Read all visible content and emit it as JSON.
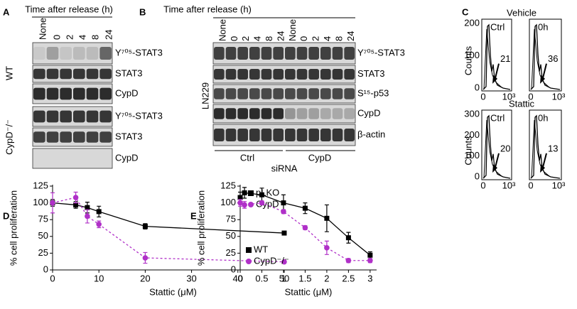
{
  "panels": {
    "A": {
      "label": "A",
      "time_axis": "Time after release (h)",
      "lanes": [
        "None",
        "0",
        "2",
        "4",
        "8",
        "24"
      ],
      "groups": [
        {
          "name": "WT",
          "rows": [
            "Y⁷⁰⁵-STAT3",
            "STAT3",
            "CypD"
          ]
        },
        {
          "name": "CypD⁻/⁻",
          "rows": [
            "Y⁷⁰⁵-STAT3",
            "STAT3",
            "CypD"
          ]
        }
      ]
    },
    "B": {
      "label": "B",
      "time_axis": "Time after release (h)",
      "lanes": [
        "None",
        "0",
        "2",
        "4",
        "8",
        "24",
        "None",
        "0",
        "2",
        "4",
        "8",
        "24"
      ],
      "cell_line": "LN229",
      "rows": [
        "Y⁷⁰⁵-STAT3",
        "STAT3",
        "S¹⁵-p53",
        "CypD",
        "β-actin"
      ],
      "sirna_groups": [
        "Ctrl",
        "CypD"
      ],
      "sirna_label": "siRNA"
    },
    "C": {
      "label": "C",
      "ylabel": "Counts",
      "xticks": [
        0,
        "10³"
      ],
      "treatments": [
        {
          "name": "Vehicle",
          "yticks": [
            200,
            100,
            0
          ],
          "plots": [
            {
              "label": "Ctrl",
              "value": 21
            },
            {
              "label": "0h",
              "value": 36
            }
          ]
        },
        {
          "name": "Stattic",
          "yticks": [
            300,
            200,
            100,
            0
          ],
          "plots": [
            {
              "label": "Ctrl",
              "value": 20
            },
            {
              "label": "0h",
              "value": 13
            }
          ]
        }
      ]
    }
  },
  "chart_data": [
    {
      "type": "line",
      "label": "D",
      "xlabel": "Stattic (μM)",
      "ylabel": "% cell proliferation",
      "xlim": [
        0,
        52
      ],
      "ylim": [
        0,
        125
      ],
      "xticks": [
        0,
        10,
        20,
        30,
        40,
        50
      ],
      "yticks": [
        0,
        25,
        50,
        75,
        100,
        125
      ],
      "legend": "upper right",
      "x": [
        0,
        5,
        7.5,
        10,
        20,
        50
      ],
      "series": [
        {
          "name": "pLKO",
          "color": "#000000",
          "marker": "square",
          "dashed": false,
          "values": [
            100,
            97,
            93,
            87,
            65,
            55
          ],
          "errors": [
            5,
            5,
            8,
            8,
            4,
            2
          ]
        },
        {
          "name": "CypD",
          "color": "#b030c8",
          "marker": "circle",
          "dashed": true,
          "values": [
            100,
            108,
            80,
            68,
            18,
            12
          ],
          "errors": [
            15,
            8,
            10,
            5,
            8,
            2
          ]
        }
      ]
    },
    {
      "type": "line",
      "label": "E",
      "xlabel": "Stattic (μM)",
      "ylabel": "% cell proliferation",
      "xlim": [
        0,
        3.15
      ],
      "ylim": [
        0,
        125
      ],
      "xticks": [
        0,
        0.5,
        1,
        1.5,
        2,
        2.5,
        3
      ],
      "yticks": [
        0,
        25,
        50,
        75,
        100,
        125
      ],
      "legend": "lower left",
      "x": [
        0,
        0.1,
        0.5,
        1,
        1.5,
        2,
        2.5,
        3
      ],
      "series": [
        {
          "name": "WT",
          "color": "#000000",
          "marker": "square",
          "dashed": false,
          "values": [
            108,
            115,
            112,
            100,
            92,
            77,
            48,
            22
          ],
          "errors": [
            8,
            8,
            10,
            12,
            8,
            20,
            8,
            5
          ]
        },
        {
          "name": "CypD⁻/⁻",
          "color": "#b030c8",
          "marker": "circle",
          "dashed": true,
          "values": [
            100,
            97,
            100,
            87,
            63,
            33,
            14,
            14
          ],
          "errors": [
            5,
            5,
            3,
            3,
            3,
            10,
            3,
            3
          ]
        }
      ]
    }
  ]
}
